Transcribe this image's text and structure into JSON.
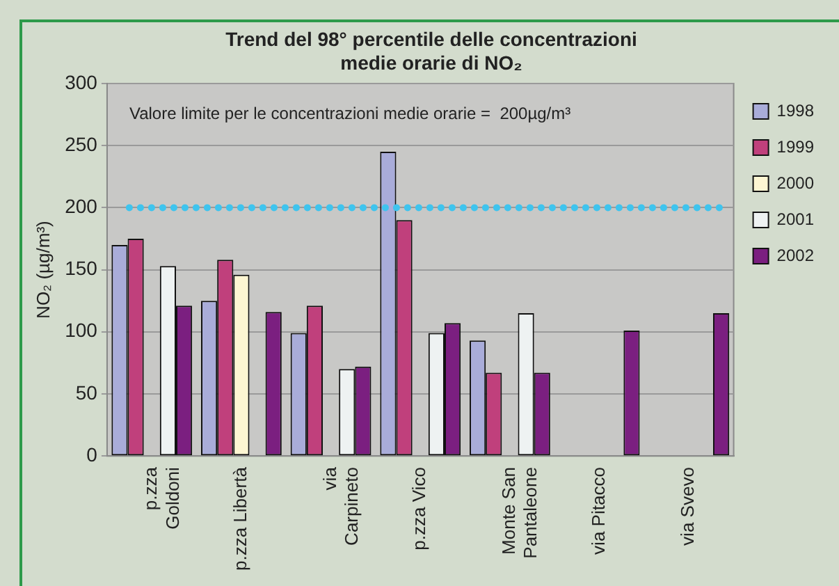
{
  "chart_data": {
    "type": "bar",
    "title": "Trend del 98° percentile delle concentrazioni medie orarie di NO₂",
    "ylabel": "NO₂ (µg/m³)",
    "categories": [
      "p.zza\nGoldoni",
      "p.zza Libertà",
      "via\nCarpineto",
      "p.zza Vico",
      "Monte San\nPantaleone",
      "via Pitacco",
      "via Svevo"
    ],
    "series": [
      {
        "name": "1998",
        "color": "#a9acd9",
        "values": [
          170,
          125,
          99,
          245,
          93,
          null,
          null
        ]
      },
      {
        "name": "1999",
        "color": "#c0407c",
        "values": [
          175,
          158,
          121,
          190,
          67,
          null,
          null
        ]
      },
      {
        "name": "2000",
        "color": "#fdf6d2",
        "values": [
          null,
          146,
          null,
          null,
          null,
          null,
          null
        ]
      },
      {
        "name": "2001",
        "color": "#eef2f2",
        "values": [
          153,
          null,
          70,
          99,
          115,
          null,
          null
        ]
      },
      {
        "name": "2002",
        "color": "#7b1f80",
        "values": [
          121,
          116,
          72,
          107,
          67,
          101,
          115
        ]
      }
    ],
    "ylim": [
      0,
      300
    ],
    "yticks": [
      0,
      50,
      100,
      150,
      200,
      250,
      300
    ],
    "grid": "y",
    "legend": "right",
    "annotations": [
      "Valore limite per le concentrazioni medie orarie =  200µg/m³"
    ],
    "ref_lines": [
      {
        "axis": "y",
        "value": 200,
        "color": "#3ec4ee",
        "line_style": "dotted"
      }
    ]
  }
}
